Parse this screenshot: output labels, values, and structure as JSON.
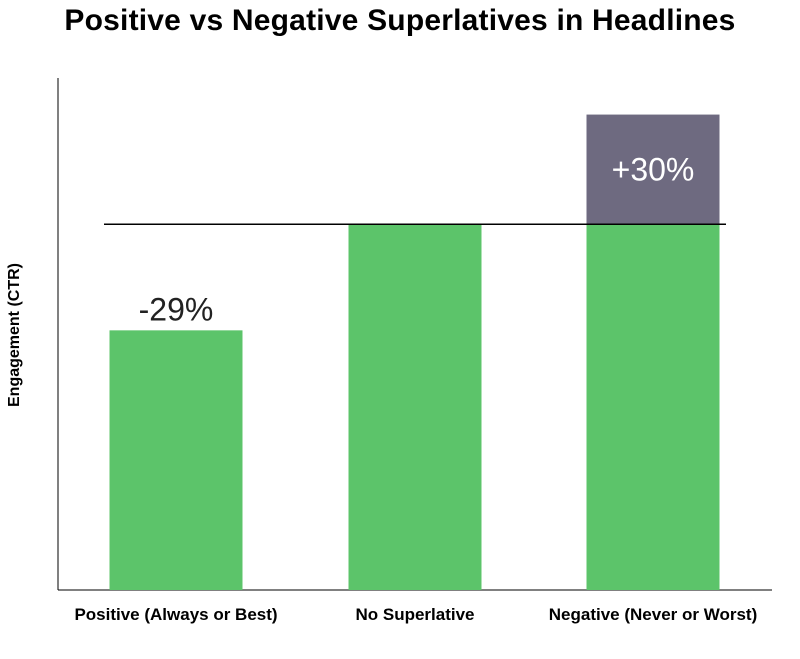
{
  "chart_data": {
    "type": "bar",
    "title": "Positive vs Negative Superlatives in Headlines",
    "ylabel": "Engagement (CTR)",
    "xlabel": "",
    "categories": [
      "Positive (Always or Best)",
      "No Superlative",
      "Negative (Never or Worst)"
    ],
    "baseline": 100,
    "values": [
      71,
      100,
      130
    ],
    "annotations": [
      "-29%",
      "",
      "+30%"
    ],
    "ylim": [
      0,
      140
    ],
    "colors": {
      "bar": "#5cc46a",
      "increase": "#6e6a80",
      "baseline_line": "#000000"
    },
    "grid": false,
    "legend": "none"
  }
}
